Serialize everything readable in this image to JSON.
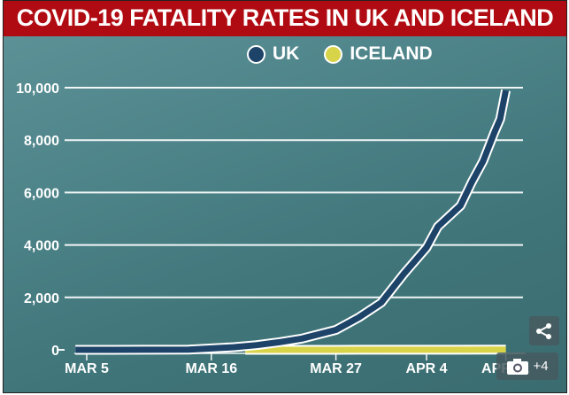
{
  "chart_data": {
    "type": "line",
    "title": "COVID-19 FATALITY RATES IN UK AND ICELAND",
    "xlabel": "",
    "ylabel": "",
    "x_unit": "days since Mar 5",
    "x_ticks": [
      {
        "day": 0,
        "label": "MAR 5"
      },
      {
        "day": 11,
        "label": "MAR 16"
      },
      {
        "day": 22,
        "label": "MAR 27"
      },
      {
        "day": 30,
        "label": "APR 4"
      },
      {
        "day": 37,
        "label": "APR 11"
      }
    ],
    "y_ticks": [
      {
        "value": 0,
        "label": "0"
      },
      {
        "value": 2000,
        "label": "2,000"
      },
      {
        "value": 4000,
        "label": "4,000"
      },
      {
        "value": 6000,
        "label": "6,000"
      },
      {
        "value": 8000,
        "label": "8,000"
      },
      {
        "value": 10000,
        "label": "10,000"
      }
    ],
    "ylim": [
      0,
      10000
    ],
    "xlim": [
      -1,
      37
    ],
    "grid": true,
    "legend_position": "top-center",
    "series": [
      {
        "name": "UK",
        "color": "#1d4468",
        "x": [
          -1,
          0,
          5,
          9,
          11,
          13,
          15,
          17,
          19,
          22,
          24,
          26,
          28,
          29,
          30,
          31,
          33,
          34,
          35,
          36,
          36.5,
          37
        ],
        "y": [
          0,
          1,
          2,
          10,
          55,
          100,
          180,
          290,
          430,
          760,
          1230,
          1800,
          2900,
          3400,
          3900,
          4700,
          5500,
          6400,
          7200,
          8300,
          8800,
          9900
        ]
      },
      {
        "name": "ICELAND",
        "color": "#d8d44a",
        "x": [
          14,
          17,
          20,
          24,
          28,
          32,
          37
        ],
        "y": [
          0,
          1,
          1,
          2,
          3,
          4,
          6
        ]
      }
    ]
  },
  "controls": {
    "share_icon": "share-icon",
    "camera_icon": "camera-icon",
    "more_count": "+4"
  }
}
